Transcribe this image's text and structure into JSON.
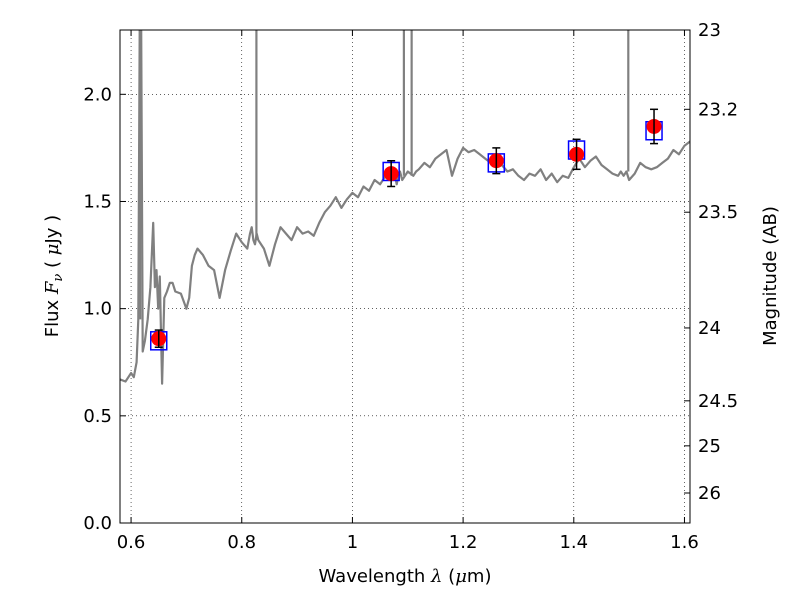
{
  "chart_data": {
    "type": "line",
    "xlabel": {
      "prefix": "Wavelength ",
      "symbol": "λ",
      "unit_open": " (",
      "unit_symbol": "μ",
      "unit_rest": "m)"
    },
    "ylabel": {
      "prefix": "Flux ",
      "symbol": "F",
      "subscript": "ν",
      "unit_open": " ( ",
      "unit_symbol": "μ",
      "unit_rest": "Jy )"
    },
    "y2label": "Magnitude (AB)",
    "xlim": [
      0.58,
      1.61
    ],
    "ylim": [
      0.0,
      2.3
    ],
    "x_ticks": [
      {
        "value": 0.6,
        "label": "0.6"
      },
      {
        "value": 0.8,
        "label": "0.8"
      },
      {
        "value": 1.0,
        "label": "1"
      },
      {
        "value": 1.2,
        "label": "1.2"
      },
      {
        "value": 1.4,
        "label": "1.4"
      },
      {
        "value": 1.6,
        "label": "1.6"
      }
    ],
    "y_ticks": [
      {
        "value": 0.0,
        "label": "0.0"
      },
      {
        "value": 0.5,
        "label": "0.5"
      },
      {
        "value": 1.0,
        "label": "1.0"
      },
      {
        "value": 1.5,
        "label": "1.5"
      },
      {
        "value": 2.0,
        "label": "2.0"
      }
    ],
    "right_ticks": [
      {
        "flux": 2.3,
        "label": "23"
      },
      {
        "flux": 1.93,
        "label": "23.2"
      },
      {
        "flux": 1.45,
        "label": "23.5"
      },
      {
        "flux": 0.91,
        "label": "24"
      },
      {
        "flux": 0.57,
        "label": "24.5"
      },
      {
        "flux": 0.36,
        "label": "25"
      },
      {
        "flux": 0.14,
        "label": "26"
      }
    ],
    "grid": true,
    "spectrum": {
      "color": "#808080",
      "x": [
        0.58,
        0.59,
        0.6,
        0.605,
        0.61,
        0.613,
        0.616,
        0.618,
        0.621,
        0.625,
        0.63,
        0.635,
        0.64,
        0.643,
        0.646,
        0.649,
        0.652,
        0.656,
        0.66,
        0.665,
        0.67,
        0.675,
        0.68,
        0.69,
        0.7,
        0.705,
        0.71,
        0.715,
        0.72,
        0.73,
        0.74,
        0.75,
        0.76,
        0.77,
        0.78,
        0.79,
        0.8,
        0.81,
        0.815,
        0.818,
        0.821,
        0.824,
        0.827,
        0.83,
        0.84,
        0.85,
        0.86,
        0.87,
        0.88,
        0.89,
        0.9,
        0.91,
        0.92,
        0.93,
        0.94,
        0.95,
        0.96,
        0.97,
        0.98,
        0.99,
        1.0,
        1.01,
        1.02,
        1.03,
        1.04,
        1.05,
        1.06,
        1.07,
        1.075,
        1.08,
        1.083,
        1.086,
        1.09,
        1.095,
        1.1,
        1.105,
        1.11,
        1.115,
        1.12,
        1.13,
        1.14,
        1.15,
        1.16,
        1.17,
        1.175,
        1.18,
        1.19,
        1.2,
        1.21,
        1.22,
        1.23,
        1.24,
        1.25,
        1.26,
        1.27,
        1.28,
        1.29,
        1.3,
        1.31,
        1.32,
        1.33,
        1.34,
        1.35,
        1.36,
        1.37,
        1.38,
        1.39,
        1.4,
        1.41,
        1.42,
        1.43,
        1.44,
        1.45,
        1.46,
        1.47,
        1.48,
        1.485,
        1.49,
        1.495,
        1.5,
        1.51,
        1.52,
        1.53,
        1.54,
        1.55,
        1.56,
        1.57,
        1.58,
        1.59,
        1.6,
        1.61
      ],
      "y": [
        0.67,
        0.66,
        0.7,
        0.68,
        0.75,
        0.95,
        2.5,
        2.5,
        0.8,
        0.85,
        0.95,
        1.1,
        1.4,
        1.1,
        1.18,
        1.0,
        1.15,
        0.65,
        1.05,
        1.08,
        1.12,
        1.12,
        1.08,
        1.07,
        1.0,
        1.05,
        1.2,
        1.25,
        1.28,
        1.25,
        1.2,
        1.18,
        1.05,
        1.18,
        1.27,
        1.35,
        1.31,
        1.28,
        1.35,
        1.38,
        1.32,
        1.3,
        1.35,
        1.32,
        1.28,
        1.2,
        1.3,
        1.38,
        1.35,
        1.32,
        1.38,
        1.35,
        1.36,
        1.34,
        1.4,
        1.45,
        1.48,
        1.52,
        1.47,
        1.51,
        1.54,
        1.52,
        1.57,
        1.55,
        1.6,
        1.58,
        1.62,
        1.61,
        1.65,
        1.58,
        1.62,
        1.64,
        1.6,
        1.62,
        1.64,
        1.63,
        1.62,
        1.64,
        1.65,
        1.68,
        1.66,
        1.7,
        1.72,
        1.74,
        1.68,
        1.62,
        1.7,
        1.75,
        1.73,
        1.74,
        1.72,
        1.7,
        1.68,
        1.66,
        1.67,
        1.64,
        1.65,
        1.62,
        1.6,
        1.63,
        1.62,
        1.65,
        1.6,
        1.63,
        1.59,
        1.62,
        1.61,
        1.66,
        1.7,
        1.66,
        1.69,
        1.71,
        1.67,
        1.65,
        1.63,
        1.62,
        1.64,
        1.62,
        1.64,
        1.6,
        1.63,
        1.68,
        1.66,
        1.65,
        1.66,
        1.68,
        1.7,
        1.74,
        1.72,
        1.76,
        1.78
      ]
    },
    "spectrum_spikes": [
      {
        "x": 0.6165,
        "y_from": 0.95,
        "y_to": 2.5
      },
      {
        "x": 0.8265,
        "y_from": 1.32,
        "y_to": 2.5
      },
      {
        "x": 1.093,
        "y_from": 1.62,
        "y_to": 2.5
      },
      {
        "x": 1.107,
        "y_from": 1.62,
        "y_to": 2.5
      },
      {
        "x": 1.4985,
        "y_from": 1.64,
        "y_to": 2.5
      }
    ],
    "observed": {
      "color": "#ff0000",
      "points": [
        {
          "x": 0.65,
          "y": 0.86,
          "err": 0.04
        },
        {
          "x": 1.07,
          "y": 1.63,
          "err": 0.06
        },
        {
          "x": 1.26,
          "y": 1.69,
          "err": 0.06
        },
        {
          "x": 1.405,
          "y": 1.72,
          "err": 0.07
        },
        {
          "x": 1.545,
          "y": 1.85,
          "err": 0.08
        }
      ]
    },
    "model_boxes": {
      "color": "#0000ff",
      "points": [
        {
          "x": 0.65,
          "y": 0.85
        },
        {
          "x": 1.07,
          "y": 1.64
        },
        {
          "x": 1.26,
          "y": 1.68
        },
        {
          "x": 1.405,
          "y": 1.74
        },
        {
          "x": 1.545,
          "y": 1.83
        }
      ]
    }
  }
}
